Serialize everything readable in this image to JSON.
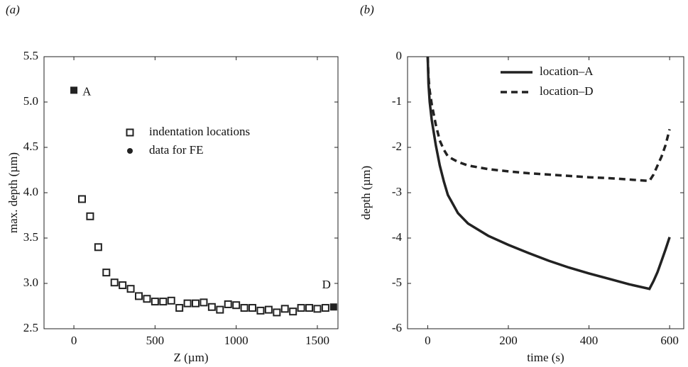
{
  "chart_data": [
    {
      "type": "scatter",
      "panel": "(a)",
      "xlabel": "Z (µm)",
      "ylabel": "max. depth (µm)",
      "xlim": [
        -184,
        1627
      ],
      "xticks": [
        0,
        500,
        1000,
        1500
      ],
      "ylim": [
        2.5,
        5.5
      ],
      "yticks": [
        {
          "value": 2.5,
          "label": "2.5"
        },
        {
          "value": 3,
          "label": "3.0"
        },
        {
          "value": 3.5,
          "label": "3.5"
        },
        {
          "value": 4,
          "label": "4.0"
        },
        {
          "value": 4.5,
          "label": "4.5"
        },
        {
          "value": 5,
          "label": "5.0"
        },
        {
          "value": 5.5,
          "label": "5.5"
        }
      ],
      "series": [
        {
          "name": "indentation locations",
          "color": "#222222",
          "marker": "square-open",
          "legend_marker": "square-open",
          "x": [
            50,
            100,
            150,
            200,
            250,
            300,
            350,
            400,
            450,
            500,
            550,
            600,
            650,
            700,
            750,
            800,
            850,
            900,
            950,
            1000,
            1050,
            1100,
            1150,
            1200,
            1250,
            1300,
            1350,
            1400,
            1450,
            1500,
            1550
          ],
          "values": [
            3.93,
            3.74,
            3.4,
            3.12,
            3.01,
            2.98,
            2.94,
            2.86,
            2.83,
            2.8,
            2.8,
            2.81,
            2.73,
            2.78,
            2.78,
            2.79,
            2.74,
            2.71,
            2.77,
            2.76,
            2.73,
            2.73,
            2.7,
            2.71,
            2.68,
            2.72,
            2.69,
            2.73,
            2.73,
            2.72,
            2.73
          ]
        },
        {
          "name": "data for FE",
          "color": "#222222",
          "marker": "square-filled",
          "legend_marker": "circle",
          "x": [
            0,
            1600
          ],
          "values": [
            5.13,
            2.74
          ]
        }
      ],
      "annotations": [
        "A",
        "D"
      ]
    },
    {
      "type": "line",
      "panel": "(b)",
      "xlabel": "time (s)",
      "ylabel": "depth (µm)",
      "xlim": [
        -50,
        635
      ],
      "xticks": [
        0,
        200,
        400,
        600
      ],
      "ylim": [
        -6,
        0
      ],
      "yticks": [
        -6,
        -5,
        -4,
        -3,
        -2,
        -1,
        0
      ],
      "x": [
        0,
        2,
        5,
        10,
        20,
        30,
        40,
        50,
        75,
        100,
        150,
        200,
        250,
        300,
        350,
        400,
        450,
        500,
        550,
        560,
        570,
        580,
        590,
        600
      ],
      "series": [
        {
          "name": "location–A",
          "color": "#222222",
          "linestyle": "solid",
          "values": [
            0,
            -0.6,
            -1.0,
            -1.4,
            -1.95,
            -2.4,
            -2.75,
            -3.05,
            -3.45,
            -3.68,
            -3.95,
            -4.15,
            -4.33,
            -4.5,
            -4.65,
            -4.78,
            -4.9,
            -5.02,
            -5.12,
            -4.95,
            -4.75,
            -4.5,
            -4.25,
            -3.98
          ]
        },
        {
          "name": "location–D",
          "color": "#222222",
          "linestyle": "dashed",
          "values": [
            0,
            -0.45,
            -0.75,
            -1.05,
            -1.5,
            -1.85,
            -2.05,
            -2.2,
            -2.32,
            -2.4,
            -2.48,
            -2.53,
            -2.57,
            -2.6,
            -2.63,
            -2.66,
            -2.68,
            -2.71,
            -2.74,
            -2.6,
            -2.4,
            -2.2,
            -1.95,
            -1.6
          ]
        }
      ]
    }
  ]
}
